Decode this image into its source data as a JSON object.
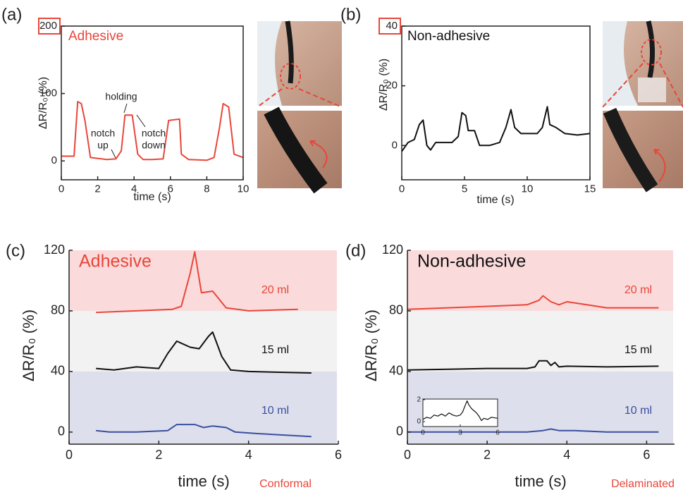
{
  "chart_data": [
    {
      "type": "line",
      "panel": "(a)",
      "title": "Adhesive",
      "title_color": "#e8463a",
      "xlabel": "time (s)",
      "ylabel": "ΔR/R₀ (%)",
      "xlim": [
        0,
        10
      ],
      "xticks": [
        0,
        2,
        4,
        6,
        8,
        10
      ],
      "ylim": [
        -28,
        200
      ],
      "yticks": [
        0,
        100,
        200
      ],
      "series": [
        {
          "color": "#e8463a",
          "x": [
            0,
            0.7,
            0.9,
            1.1,
            1.3,
            1.6,
            2.5,
            3,
            3.3,
            3.5,
            3.9,
            4.2,
            4.5,
            5,
            5.6,
            5.9,
            6.5,
            6.6,
            7,
            8,
            8.4,
            8.7,
            8.9,
            9.2,
            9.5,
            10
          ],
          "values": [
            7,
            7,
            88,
            85,
            60,
            5,
            2,
            3,
            15,
            68,
            68,
            10,
            2,
            2,
            3,
            60,
            62,
            10,
            2,
            1,
            5,
            50,
            85,
            80,
            10,
            5
          ]
        }
      ],
      "annotations": [
        {
          "lines": [
            "notch",
            "up"
          ]
        },
        {
          "lines": [
            "holding"
          ]
        },
        {
          "lines": [
            "notch",
            "down"
          ]
        },
        {
          "lines": [
            "Conformal"
          ]
        }
      ]
    },
    {
      "type": "line",
      "panel": "(b)",
      "title": "Non-adhesive",
      "title_color": "#111111",
      "xlabel": "time (s)",
      "ylabel": "ΔR/R₀ (%)",
      "xlim": [
        0,
        15
      ],
      "xticks": [
        0,
        5,
        10,
        15
      ],
      "ylim": [
        -11.5,
        40
      ],
      "yticks": [
        0,
        20,
        40
      ],
      "series": [
        {
          "color": "#111111",
          "x": [
            0,
            0.5,
            1,
            1.4,
            1.7,
            2,
            2.3,
            2.7,
            4,
            4.5,
            4.8,
            5.1,
            5.3,
            5.8,
            6.2,
            7,
            7.8,
            8.3,
            8.7,
            9,
            9.5,
            10.8,
            11.2,
            11.6,
            11.8,
            12.3,
            13,
            14,
            15
          ],
          "values": [
            -2,
            1,
            2,
            7,
            8.5,
            0,
            -1.5,
            1,
            1,
            3,
            11,
            10,
            5,
            5,
            0,
            0,
            1,
            6,
            12,
            6,
            4,
            4,
            6,
            13,
            7,
            6,
            4,
            3.5,
            4
          ]
        }
      ],
      "annotations": [
        {
          "lines": [
            "Delaminated"
          ]
        }
      ]
    },
    {
      "type": "line",
      "panel": "(c)",
      "title": "Adhesive",
      "title_color": "#e8463a",
      "xlabel": "time (s)",
      "ylabel": "ΔR/R₀ (%)",
      "xlim": [
        0,
        6
      ],
      "xticks": [
        0,
        2,
        4,
        6
      ],
      "ylim": [
        -8,
        120
      ],
      "yticks": [
        0,
        40,
        80,
        120
      ],
      "series": [
        {
          "name": "20 ml",
          "color": "#e8463a",
          "x": [
            0.6,
            1.5,
            2.3,
            2.5,
            2.7,
            2.8,
            2.95,
            3.2,
            3.5,
            4,
            5.1
          ],
          "values": [
            79,
            80,
            81,
            83,
            105,
            119,
            92,
            93,
            82,
            80,
            81
          ]
        },
        {
          "name": "15 ml",
          "color": "#111111",
          "x": [
            0.6,
            1,
            1.5,
            2,
            2.2,
            2.4,
            2.7,
            2.9,
            3.1,
            3.2,
            3.4,
            3.6,
            4,
            5.4
          ],
          "values": [
            42,
            41,
            43,
            42,
            52,
            60,
            56,
            55,
            63,
            66,
            50,
            41,
            40,
            39
          ]
        },
        {
          "name": "10 ml",
          "color": "#3a4fa0",
          "x": [
            0.6,
            0.9,
            1.5,
            2.2,
            2.4,
            2.8,
            3,
            3.2,
            3.5,
            3.7,
            4.2,
            5.4
          ],
          "values": [
            1,
            0,
            0,
            1,
            5,
            5,
            3,
            4,
            3,
            0,
            -1,
            -3
          ]
        }
      ]
    },
    {
      "type": "line",
      "panel": "(d)",
      "title": "Non-adhesive",
      "title_color": "#111111",
      "xlabel": "time (s)",
      "ylabel": "ΔR/R₀ (%)",
      "xlim": [
        0,
        6.7
      ],
      "xticks": [
        0,
        2,
        4,
        6
      ],
      "ylim": [
        -8,
        120
      ],
      "yticks": [
        0,
        40,
        80,
        120
      ],
      "series": [
        {
          "name": "20 ml",
          "color": "#e8463a",
          "x": [
            0,
            1,
            2,
            3,
            3.3,
            3.4,
            3.6,
            3.8,
            4,
            4.5,
            5,
            6.3
          ],
          "values": [
            81,
            82,
            83,
            84,
            87,
            90,
            86,
            84,
            86,
            84,
            82,
            82
          ]
        },
        {
          "name": "15 ml",
          "color": "#111111",
          "x": [
            0,
            1,
            2,
            3,
            3.2,
            3.3,
            3.5,
            3.6,
            3.7,
            3.8,
            4,
            5,
            6.3
          ],
          "values": [
            41,
            41.5,
            42,
            42,
            43,
            47,
            47,
            44,
            46,
            43,
            43.5,
            43,
            43.5
          ]
        },
        {
          "name": "10 ml",
          "color": "#3a4fa0",
          "x": [
            0,
            3,
            3.4,
            3.6,
            3.8,
            4.2,
            5,
            6.3
          ],
          "values": [
            0,
            0,
            1,
            2,
            1,
            1,
            0,
            0
          ]
        }
      ]
    },
    {
      "type": "line",
      "xlim": [
        0,
        6
      ],
      "xticks": [
        0,
        3,
        6
      ],
      "ylim": [
        -0.45,
        2.06
      ],
      "yticks": [
        0,
        2
      ],
      "series": [
        {
          "color": "#111111",
          "x": [
            0,
            0.3,
            0.6,
            0.9,
            1.2,
            1.5,
            1.8,
            2.1,
            2.4,
            2.7,
            3,
            3.2,
            3.4,
            3.55,
            3.7,
            3.9,
            4.1,
            4.3,
            4.5,
            4.7,
            4.9,
            5.2,
            5.5,
            6
          ],
          "values": [
            0.2,
            0.4,
            0.3,
            0.6,
            0.5,
            0.7,
            0.5,
            0.8,
            0.6,
            0.5,
            0.6,
            0.9,
            1.5,
            1.9,
            1.5,
            1.2,
            1.0,
            0.8,
            0.5,
            0.1,
            0.3,
            0.2,
            0.4,
            0.3
          ]
        }
      ]
    }
  ]
}
